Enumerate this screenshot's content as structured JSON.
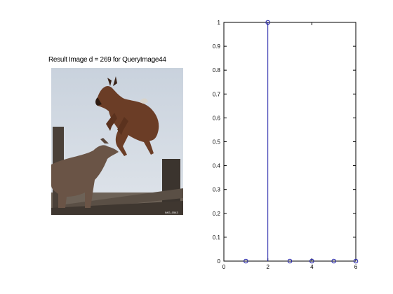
{
  "image_panel": {
    "title": "Result Image d = 269 for QueryImage44",
    "photo_subject": "two goats, one leaping over a fence",
    "watermark": "IMG_0543"
  },
  "chart_data": {
    "type": "stem",
    "x": [
      1,
      2,
      3,
      4,
      5,
      6
    ],
    "values": [
      0,
      1,
      0,
      0,
      0,
      0
    ],
    "xlim": [
      0,
      6
    ],
    "ylim": [
      0,
      1
    ],
    "xticks": [
      0,
      2,
      4,
      6
    ],
    "yticks": [
      0,
      0.1,
      0.2,
      0.3,
      0.4,
      0.5,
      0.6,
      0.7,
      0.8,
      0.9,
      1
    ],
    "title": "",
    "xlabel": "",
    "ylabel": "",
    "grid": false,
    "marker": "circle-open",
    "color": "#1f1fa8"
  }
}
